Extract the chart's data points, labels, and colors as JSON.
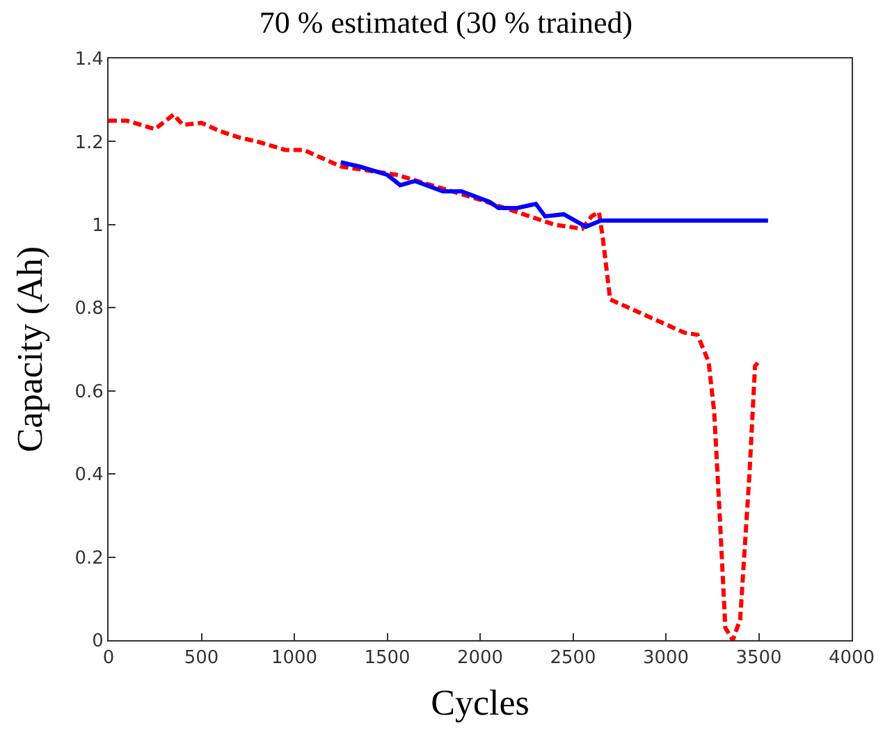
{
  "chart_data": {
    "type": "line",
    "title": "70 % estimated (30 % trained)",
    "xlabel": "Cycles",
    "ylabel": "Capacity (Ah)",
    "xlim": [
      0,
      4000
    ],
    "xticks": [
      0,
      500,
      1000,
      1500,
      2000,
      2500,
      3000,
      3500,
      4000
    ],
    "ylim": [
      0,
      1.4
    ],
    "yticks": [
      0,
      0.2,
      0.4,
      0.6,
      0.8,
      1,
      1.2,
      1.4
    ],
    "series": [
      {
        "color": "#ff0000",
        "line_style": "dashed",
        "x": [
          0,
          100,
          250,
          350,
          400,
          500,
          600,
          700,
          800,
          950,
          1050,
          1150,
          1250,
          1400,
          1550,
          1700,
          1850,
          2000,
          2200,
          2400,
          2550,
          2600,
          2640,
          2660,
          2700,
          2850,
          3000,
          3100,
          3170,
          3230,
          3260,
          3290,
          3320,
          3360,
          3400,
          3450,
          3480,
          3500
        ],
        "values": [
          1.25,
          1.25,
          1.23,
          1.265,
          1.24,
          1.245,
          1.225,
          1.21,
          1.2,
          1.18,
          1.18,
          1.16,
          1.14,
          1.13,
          1.12,
          1.1,
          1.08,
          1.06,
          1.03,
          1.0,
          0.99,
          1.02,
          1.03,
          0.97,
          0.82,
          0.79,
          0.76,
          0.74,
          0.735,
          0.67,
          0.55,
          0.3,
          0.03,
          0,
          0.05,
          0.4,
          0.66,
          0.67
        ]
      },
      {
        "color": "#0000ff",
        "line_style": "solid",
        "x": [
          1250,
          1350,
          1500,
          1570,
          1650,
          1800,
          1900,
          2050,
          2100,
          2200,
          2300,
          2350,
          2450,
          2570,
          2650,
          3550
        ],
        "values": [
          1.15,
          1.14,
          1.12,
          1.095,
          1.105,
          1.08,
          1.08,
          1.055,
          1.04,
          1.04,
          1.05,
          1.02,
          1.025,
          0.995,
          1.01,
          1.01
        ]
      }
    ]
  }
}
